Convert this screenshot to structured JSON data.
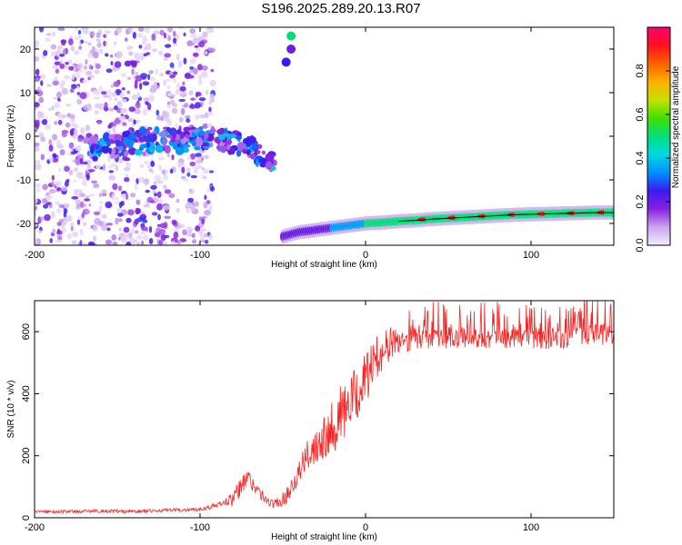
{
  "title": "S196.2025.289.20.13.R07",
  "chart_data": [
    {
      "type": "heatmap",
      "title": "S196.2025.289.20.13.R07",
      "xlabel": "Height of straight line (km)",
      "ylabel": "Frequency (Hz)",
      "xlim": [
        -200,
        150
      ],
      "ylim": [
        -25,
        25
      ],
      "xticks": [
        -200,
        -100,
        0,
        100
      ],
      "xtick_labels": [
        "-200",
        "-100",
        "0",
        "100"
      ],
      "yticks": [
        -20,
        -10,
        0,
        10,
        20
      ],
      "ytick_labels": [
        "-20",
        "-10",
        "0",
        "10",
        "20"
      ],
      "colorbar": {
        "label": "Normalized spectral amplitude",
        "range": [
          0,
          1
        ],
        "ticks": [
          0.0,
          0.2,
          0.4,
          0.6,
          0.8
        ],
        "tick_labels": [
          "0.0",
          "0.2",
          "0.4",
          "0.6",
          "0.8"
        ],
        "colors": [
          "#f4ecfb",
          "#c9a4f0",
          "#8a1fe0",
          "#3a1cf0",
          "#0090ff",
          "#00d8e0",
          "#00e07a",
          "#40e000",
          "#c8e000",
          "#ffb000",
          "#ff6000",
          "#ff1020",
          "#ff0070"
        ]
      },
      "noise_region_x": [
        -200,
        -100
      ],
      "ridge_upper": {
        "x": [
          -170,
          -150,
          -130,
          -110,
          -95,
          -80,
          -70,
          -60,
          -55
        ],
        "y": [
          -3,
          -2,
          -1,
          -1,
          0,
          -1,
          -3,
          -5,
          -6
        ]
      },
      "ridge_lower": {
        "x": [
          -50,
          -40,
          -30,
          -20,
          -10,
          0,
          10,
          20,
          30,
          40,
          50,
          60,
          70,
          80,
          90,
          100,
          110,
          120,
          130,
          140,
          150
        ],
        "y": [
          -23,
          -22,
          -21.5,
          -21,
          -20.5,
          -20,
          -19.8,
          -19.5,
          -19.3,
          -19,
          -18.8,
          -18.6,
          -18.4,
          -18.2,
          -18,
          -17.9,
          -17.8,
          -17.7,
          -17.6,
          -17.5,
          -17.5
        ]
      },
      "top_blobs": [
        {
          "x": -45,
          "y": 23,
          "v": 0.5
        },
        {
          "x": -48,
          "y": 17,
          "v": 0.25
        },
        {
          "x": -45,
          "y": 20,
          "v": 0.2
        }
      ]
    },
    {
      "type": "line",
      "xlabel": "Height of straight line (km)",
      "ylabel": "SNR (10 * v/v)",
      "xlim": [
        -200,
        150
      ],
      "ylim": [
        0,
        700
      ],
      "xticks": [
        -200,
        -100,
        0,
        100
      ],
      "xtick_labels": [
        "-200",
        "-100",
        "0",
        "100"
      ],
      "yticks": [
        0,
        200,
        400,
        600
      ],
      "ytick_labels": [
        "0",
        "200",
        "400",
        "600"
      ],
      "color": "#ff2020",
      "series": [
        {
          "name": "SNR",
          "x": [
            -200,
            -180,
            -160,
            -140,
            -120,
            -110,
            -100,
            -90,
            -80,
            -76,
            -72,
            -68,
            -64,
            -60,
            -56,
            -52,
            -48,
            -44,
            -40,
            -35,
            -30,
            -25,
            -20,
            -15,
            -10,
            -5,
            0,
            5,
            10,
            15,
            20,
            25,
            30,
            40,
            50,
            60,
            70,
            80,
            90,
            100,
            110,
            120,
            130,
            140,
            150
          ],
          "y": [
            20,
            20,
            22,
            20,
            24,
            25,
            28,
            40,
            60,
            90,
            130,
            110,
            80,
            55,
            45,
            50,
            70,
            110,
            150,
            200,
            240,
            270,
            300,
            330,
            360,
            400,
            450,
            500,
            540,
            560,
            575,
            580,
            585,
            580,
            580,
            582,
            578,
            580,
            582,
            580,
            578,
            580,
            583,
            586,
            590
          ]
        }
      ],
      "spread": {
        "x": [
          -200,
          -100,
          -85,
          -75,
          -65,
          -55,
          -45,
          -35,
          -25,
          -15,
          -5,
          5,
          15,
          25,
          40,
          150
        ],
        "y": [
          10,
          12,
          20,
          80,
          40,
          25,
          60,
          100,
          160,
          200,
          180,
          150,
          110,
          90,
          70,
          70
        ]
      }
    }
  ]
}
